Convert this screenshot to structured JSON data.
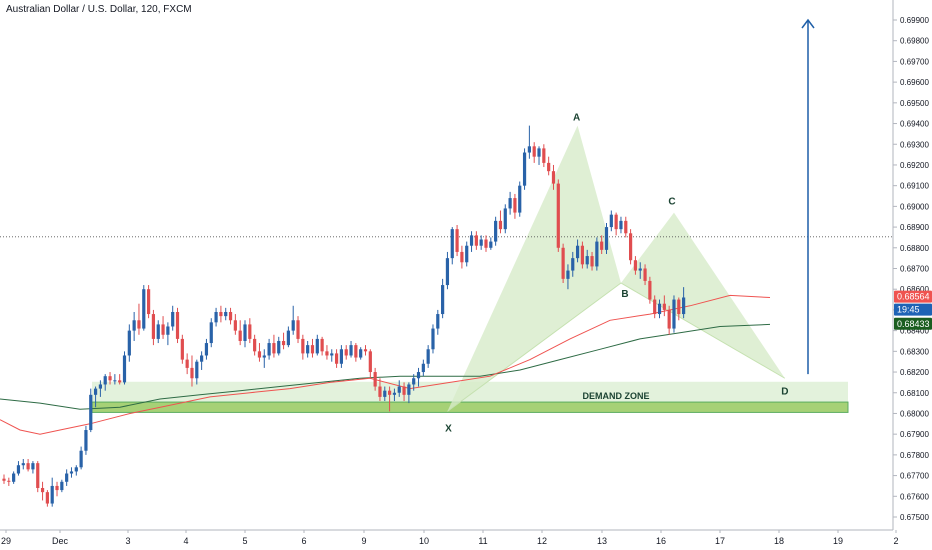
{
  "chart_data": {
    "type": "candlestick",
    "title": "Australian Dollar / U.S. Dollar, 120, FXCM",
    "y_ticks": [
      "0.69900",
      "0.69800",
      "0.69700",
      "0.69600",
      "0.69500",
      "0.69400",
      "0.69300",
      "0.69200",
      "0.69100",
      "0.69000",
      "0.68900",
      "0.68800",
      "0.68700",
      "0.68600",
      "0.68500",
      "0.68400",
      "0.68300",
      "0.68200",
      "0.68100",
      "0.68000",
      "0.67900",
      "0.67800",
      "0.67700",
      "0.67600",
      "0.67500"
    ],
    "ylim": [
      0.6745,
      0.6999
    ],
    "x_ticks": [
      "29",
      "Dec",
      "3",
      "4",
      "5",
      "6",
      "9",
      "10",
      "11",
      "12",
      "13",
      "16",
      "17",
      "18",
      "19",
      "2"
    ],
    "candles_ohlc": [
      [
        0.67685,
        0.67705,
        0.6766,
        0.67675
      ],
      [
        0.67675,
        0.6769,
        0.6765,
        0.6767
      ],
      [
        0.6767,
        0.6772,
        0.6766,
        0.6771
      ],
      [
        0.6771,
        0.6777,
        0.677,
        0.6775
      ],
      [
        0.6775,
        0.6778,
        0.6773,
        0.6776
      ],
      [
        0.6776,
        0.6778,
        0.6772,
        0.6773
      ],
      [
        0.6773,
        0.6777,
        0.6771,
        0.6776
      ],
      [
        0.6776,
        0.6777,
        0.6762,
        0.6764
      ],
      [
        0.6764,
        0.6767,
        0.6758,
        0.6762
      ],
      [
        0.6762,
        0.6763,
        0.6755,
        0.67565
      ],
      [
        0.67565,
        0.6769,
        0.6755,
        0.6765
      ],
      [
        0.6765,
        0.6767,
        0.676,
        0.6763
      ],
      [
        0.6763,
        0.6768,
        0.6762,
        0.6767
      ],
      [
        0.6767,
        0.6773,
        0.6765,
        0.6771
      ],
      [
        0.6771,
        0.6774,
        0.6769,
        0.6772
      ],
      [
        0.6772,
        0.6775,
        0.677,
        0.6774
      ],
      [
        0.6774,
        0.6784,
        0.6773,
        0.6782
      ],
      [
        0.6782,
        0.6794,
        0.678,
        0.6792
      ],
      [
        0.6792,
        0.6812,
        0.6791,
        0.6809
      ],
      [
        0.6809,
        0.6813,
        0.6803,
        0.6812
      ],
      [
        0.6812,
        0.6816,
        0.6808,
        0.6814
      ],
      [
        0.6814,
        0.6819,
        0.6811,
        0.6818
      ],
      [
        0.6818,
        0.682,
        0.6814,
        0.6816
      ],
      [
        0.6816,
        0.6819,
        0.6814,
        0.6816
      ],
      [
        0.6816,
        0.6819,
        0.6814,
        0.6815
      ],
      [
        0.6815,
        0.683,
        0.6814,
        0.6828
      ],
      [
        0.6828,
        0.6843,
        0.6825,
        0.684
      ],
      [
        0.684,
        0.6849,
        0.6835,
        0.6845
      ],
      [
        0.6845,
        0.6853,
        0.6838,
        0.6841
      ],
      [
        0.6841,
        0.6862,
        0.684,
        0.686
      ],
      [
        0.686,
        0.6862,
        0.6846,
        0.6848
      ],
      [
        0.6848,
        0.685,
        0.6833,
        0.6836
      ],
      [
        0.6836,
        0.6845,
        0.6834,
        0.6843
      ],
      [
        0.6843,
        0.6847,
        0.6836,
        0.6838
      ],
      [
        0.6838,
        0.6844,
        0.6833,
        0.6842
      ],
      [
        0.6842,
        0.6852,
        0.684,
        0.6849
      ],
      [
        0.6849,
        0.6851,
        0.6834,
        0.6836
      ],
      [
        0.6836,
        0.6838,
        0.6824,
        0.6826
      ],
      [
        0.6826,
        0.6829,
        0.6819,
        0.6822
      ],
      [
        0.6822,
        0.6828,
        0.6813,
        0.6817
      ],
      [
        0.6817,
        0.6826,
        0.6814,
        0.6825
      ],
      [
        0.6825,
        0.683,
        0.6821,
        0.6828
      ],
      [
        0.6828,
        0.6836,
        0.6826,
        0.6834
      ],
      [
        0.6834,
        0.6846,
        0.6832,
        0.6844
      ],
      [
        0.6844,
        0.6851,
        0.6842,
        0.6849
      ],
      [
        0.6849,
        0.6852,
        0.6844,
        0.6847
      ],
      [
        0.6847,
        0.6851,
        0.6845,
        0.6849
      ],
      [
        0.6849,
        0.6851,
        0.6843,
        0.6845
      ],
      [
        0.6845,
        0.6848,
        0.6838,
        0.684
      ],
      [
        0.684,
        0.6845,
        0.6833,
        0.6835
      ],
      [
        0.6835,
        0.6845,
        0.6832,
        0.6843
      ],
      [
        0.6843,
        0.6846,
        0.6834,
        0.6836
      ],
      [
        0.6836,
        0.6838,
        0.6828,
        0.683
      ],
      [
        0.683,
        0.6834,
        0.6825,
        0.6827
      ],
      [
        0.6827,
        0.6831,
        0.6822,
        0.6828
      ],
      [
        0.6828,
        0.6836,
        0.6826,
        0.6834
      ],
      [
        0.6834,
        0.6838,
        0.6827,
        0.6829
      ],
      [
        0.6829,
        0.6837,
        0.6828,
        0.6835
      ],
      [
        0.6835,
        0.6839,
        0.6831,
        0.6833
      ],
      [
        0.6833,
        0.6842,
        0.6832,
        0.684
      ],
      [
        0.684,
        0.6852,
        0.6838,
        0.6845
      ],
      [
        0.6845,
        0.6847,
        0.6834,
        0.6836
      ],
      [
        0.6836,
        0.6838,
        0.6826,
        0.6829
      ],
      [
        0.6829,
        0.6835,
        0.6827,
        0.6833
      ],
      [
        0.6833,
        0.6836,
        0.6827,
        0.6829
      ],
      [
        0.6829,
        0.6838,
        0.6828,
        0.6836
      ],
      [
        0.6836,
        0.6837,
        0.6828,
        0.683
      ],
      [
        0.683,
        0.6833,
        0.6826,
        0.6828
      ],
      [
        0.6828,
        0.6831,
        0.6825,
        0.6829
      ],
      [
        0.6829,
        0.6831,
        0.6822,
        0.6824
      ],
      [
        0.6824,
        0.6833,
        0.6822,
        0.6831
      ],
      [
        0.6831,
        0.6833,
        0.6826,
        0.6828
      ],
      [
        0.6828,
        0.6835,
        0.6827,
        0.6833
      ],
      [
        0.6833,
        0.6834,
        0.6825,
        0.6827
      ],
      [
        0.6827,
        0.6832,
        0.6826,
        0.6831
      ],
      [
        0.6831,
        0.6833,
        0.6828,
        0.683
      ],
      [
        0.683,
        0.6831,
        0.6817,
        0.682
      ],
      [
        0.682,
        0.6822,
        0.6811,
        0.6813
      ],
      [
        0.6813,
        0.6817,
        0.6806,
        0.6808
      ],
      [
        0.6808,
        0.6813,
        0.6806,
        0.6811
      ],
      [
        0.6811,
        0.6813,
        0.6801,
        0.6809
      ],
      [
        0.6809,
        0.6812,
        0.6806,
        0.681
      ],
      [
        0.681,
        0.6816,
        0.6808,
        0.6813
      ],
      [
        0.6813,
        0.6815,
        0.6806,
        0.6809
      ],
      [
        0.6809,
        0.6815,
        0.6805,
        0.6814
      ],
      [
        0.6814,
        0.6819,
        0.6811,
        0.6817
      ],
      [
        0.6817,
        0.6822,
        0.6813,
        0.682
      ],
      [
        0.682,
        0.6826,
        0.6818,
        0.6824
      ],
      [
        0.6824,
        0.6833,
        0.6822,
        0.6831
      ],
      [
        0.6831,
        0.6843,
        0.6829,
        0.6841
      ],
      [
        0.6841,
        0.685,
        0.6838,
        0.6848
      ],
      [
        0.6848,
        0.6865,
        0.6846,
        0.6862
      ],
      [
        0.6862,
        0.6878,
        0.686,
        0.6875
      ],
      [
        0.6875,
        0.689,
        0.6872,
        0.6889
      ],
      [
        0.6889,
        0.6891,
        0.6876,
        0.6878
      ],
      [
        0.6878,
        0.6881,
        0.687,
        0.6873
      ],
      [
        0.6873,
        0.6883,
        0.6871,
        0.6881
      ],
      [
        0.6881,
        0.6888,
        0.6878,
        0.6886
      ],
      [
        0.6886,
        0.6888,
        0.6879,
        0.6881
      ],
      [
        0.6881,
        0.6886,
        0.6879,
        0.6884
      ],
      [
        0.6884,
        0.6886,
        0.6878,
        0.688
      ],
      [
        0.688,
        0.6885,
        0.6879,
        0.6883
      ],
      [
        0.6883,
        0.6895,
        0.6881,
        0.6893
      ],
      [
        0.6893,
        0.6898,
        0.6887,
        0.6889
      ],
      [
        0.6889,
        0.6901,
        0.6887,
        0.6899
      ],
      [
        0.6899,
        0.6907,
        0.6896,
        0.6904
      ],
      [
        0.6904,
        0.6906,
        0.6894,
        0.6897
      ],
      [
        0.6897,
        0.6912,
        0.6895,
        0.691
      ],
      [
        0.691,
        0.6928,
        0.6908,
        0.6926
      ],
      [
        0.6926,
        0.6939,
        0.6923,
        0.6929
      ],
      [
        0.6929,
        0.6931,
        0.6921,
        0.6924
      ],
      [
        0.6924,
        0.6929,
        0.692,
        0.6928
      ],
      [
        0.6928,
        0.693,
        0.6919,
        0.6921
      ],
      [
        0.6921,
        0.6924,
        0.6915,
        0.6917
      ],
      [
        0.6917,
        0.692,
        0.6908,
        0.6911
      ],
      [
        0.6911,
        0.6913,
        0.6878,
        0.688
      ],
      [
        0.688,
        0.6882,
        0.6863,
        0.6865
      ],
      [
        0.6865,
        0.6872,
        0.686,
        0.6869
      ],
      [
        0.6869,
        0.6878,
        0.6866,
        0.6875
      ],
      [
        0.6875,
        0.6884,
        0.6873,
        0.6881
      ],
      [
        0.6881,
        0.6883,
        0.687,
        0.6872
      ],
      [
        0.6872,
        0.6879,
        0.687,
        0.6876
      ],
      [
        0.6876,
        0.6878,
        0.6869,
        0.6871
      ],
      [
        0.6871,
        0.6885,
        0.6869,
        0.6883
      ],
      [
        0.6883,
        0.6886,
        0.6877,
        0.6879
      ],
      [
        0.6879,
        0.6892,
        0.6877,
        0.689
      ],
      [
        0.689,
        0.6898,
        0.6888,
        0.6896
      ],
      [
        0.6896,
        0.6897,
        0.6886,
        0.6889
      ],
      [
        0.6889,
        0.6895,
        0.6887,
        0.6893
      ],
      [
        0.6893,
        0.6895,
        0.6885,
        0.6887
      ],
      [
        0.6887,
        0.6889,
        0.6872,
        0.6874
      ],
      [
        0.6874,
        0.6876,
        0.6867,
        0.6869
      ],
      [
        0.6869,
        0.6873,
        0.6865,
        0.687
      ],
      [
        0.687,
        0.6872,
        0.6862,
        0.6864
      ],
      [
        0.6864,
        0.6866,
        0.6853,
        0.6855
      ],
      [
        0.6855,
        0.6857,
        0.6846,
        0.6848
      ],
      [
        0.6848,
        0.6855,
        0.6846,
        0.6853
      ],
      [
        0.6853,
        0.6857,
        0.6847,
        0.685
      ],
      [
        0.685,
        0.6852,
        0.6838,
        0.6841
      ],
      [
        0.6841,
        0.6857,
        0.6839,
        0.6855
      ],
      [
        0.6855,
        0.6856,
        0.6845,
        0.6848
      ],
      [
        0.6848,
        0.6861,
        0.6846,
        0.6856
      ]
    ],
    "x_start_index": 0,
    "ma_red": [
      [
        0,
        0.6797
      ],
      [
        20,
        0.6792
      ],
      [
        40,
        0.679
      ],
      [
        60,
        0.6792
      ],
      [
        90,
        0.6795
      ],
      [
        130,
        0.68
      ],
      [
        170,
        0.6804
      ],
      [
        210,
        0.6808
      ],
      [
        250,
        0.681
      ],
      [
        290,
        0.6812
      ],
      [
        330,
        0.6815
      ],
      [
        370,
        0.6817
      ],
      [
        410,
        0.6812
      ],
      [
        450,
        0.6815
      ],
      [
        490,
        0.6818
      ],
      [
        530,
        0.6826
      ],
      [
        570,
        0.6836
      ],
      [
        610,
        0.6845
      ],
      [
        650,
        0.6848
      ],
      [
        690,
        0.6852
      ],
      [
        730,
        0.6857
      ],
      [
        770,
        0.6856
      ]
    ],
    "ma_green": [
      [
        0,
        0.6807
      ],
      [
        40,
        0.6805
      ],
      [
        80,
        0.6802
      ],
      [
        120,
        0.6803
      ],
      [
        160,
        0.6807
      ],
      [
        200,
        0.6809
      ],
      [
        240,
        0.6811
      ],
      [
        280,
        0.6813
      ],
      [
        320,
        0.6815
      ],
      [
        360,
        0.6817
      ],
      [
        400,
        0.6818
      ],
      [
        440,
        0.6818
      ],
      [
        480,
        0.6818
      ],
      [
        520,
        0.6821
      ],
      [
        560,
        0.6826
      ],
      [
        600,
        0.6831
      ],
      [
        640,
        0.6836
      ],
      [
        680,
        0.6839
      ],
      [
        720,
        0.6842
      ],
      [
        770,
        0.6843
      ]
    ],
    "dotted_level": 0.68853,
    "harmonic": {
      "X": {
        "i": 92,
        "p": 0.6801,
        "label": "X"
      },
      "A": {
        "i": 119,
        "p": 0.6939,
        "label": "A"
      },
      "B": {
        "i": 128,
        "p": 0.6863,
        "label": "B"
      },
      "C": {
        "i": 139,
        "p": 0.6897,
        "label": "C"
      },
      "D": {
        "i": 162,
        "p": 0.6817,
        "label": "D"
      }
    },
    "demand_zone": {
      "top": 0.68153,
      "bottom": 0.68005,
      "inner_bottom": 0.6802,
      "label": "DEMAND ZONE"
    },
    "arrow": {
      "i": 162,
      "from": 0.6819,
      "to": 0.699
    },
    "price_badges": [
      {
        "value": "0.68564",
        "color": "#ef5350"
      },
      {
        "value": "19:45",
        "color": "#1e63b5"
      },
      {
        "value": "0.68433",
        "color": "#1b5e20"
      }
    ],
    "colors": {
      "up": "#2962a8",
      "down": "#e04d4f",
      "pattern": "#d7ebc9",
      "zone": "#e3f2dc",
      "zone_inner": "#9ccc65",
      "arrow": "#1f5fa8",
      "ma_red": "#ef5350",
      "ma_green": "#2e6b45"
    }
  }
}
